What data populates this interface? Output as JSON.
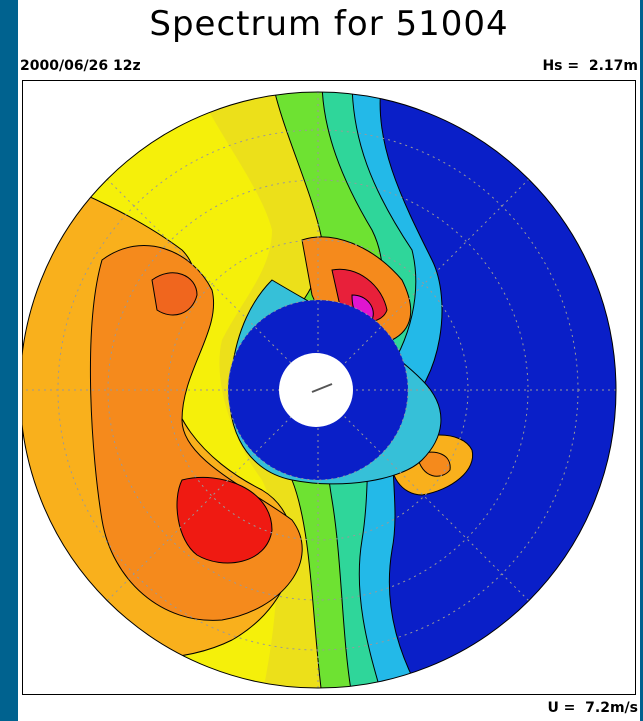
{
  "header": {
    "title": "Spectrum for 51004",
    "date": "2000/06/26 12z",
    "hs": "Hs =  2.17m"
  },
  "footer": {
    "wind": "U =  7.2m/s"
  }
}
